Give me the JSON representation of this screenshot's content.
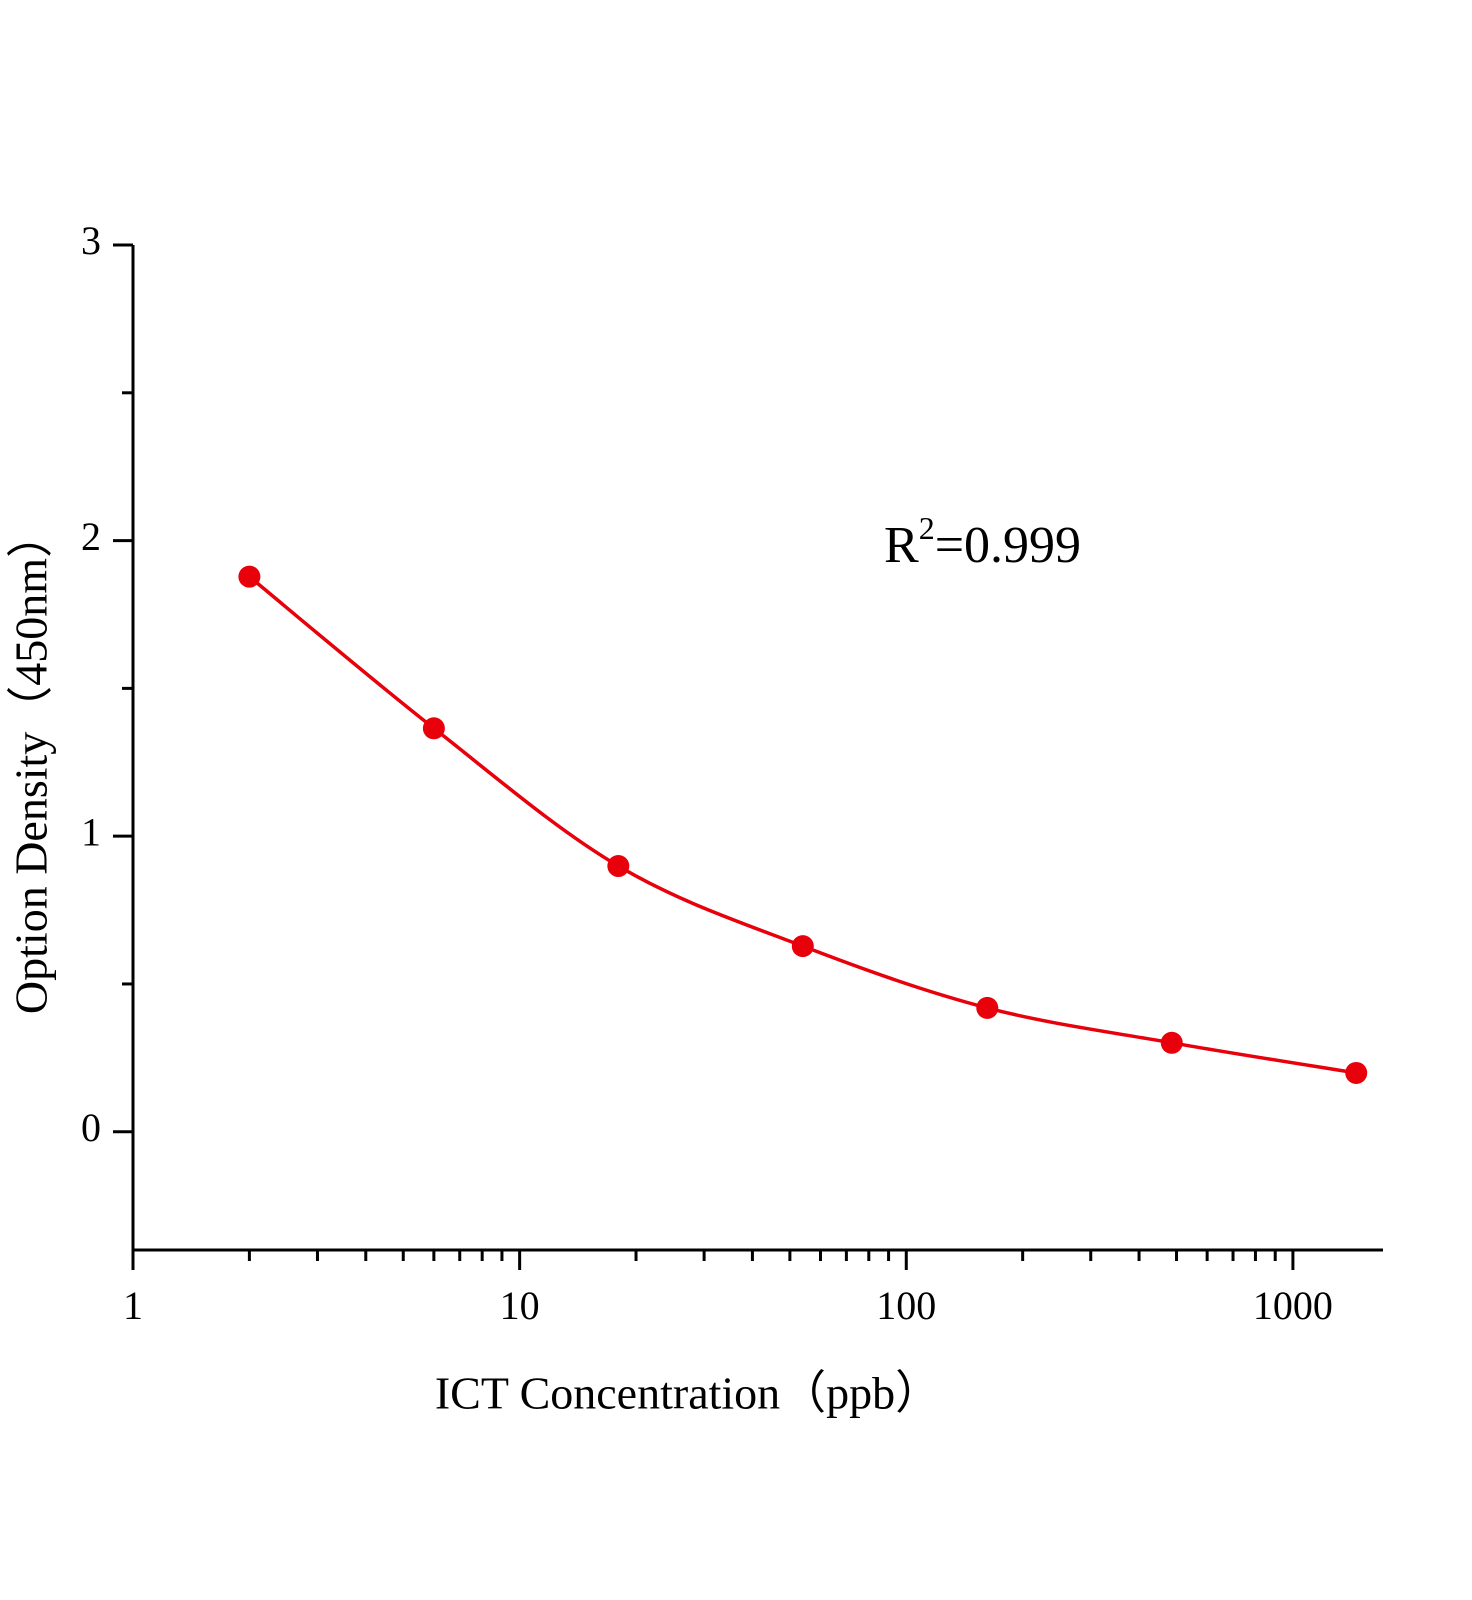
{
  "chart_data": {
    "type": "scatter",
    "xlabel": "ICT  Concentration（ppb）",
    "ylabel": "Option Density（450nm）",
    "annotation": {
      "base": "R",
      "superscript": "2",
      "text": "=0.999"
    },
    "x": [
      2,
      6,
      18,
      54,
      162,
      486,
      1458
    ],
    "series": [
      {
        "color": "#e8000b",
        "values": [
          1.878,
          1.365,
          0.899,
          0.628,
          0.419,
          0.301,
          0.199
        ]
      }
    ],
    "line": true,
    "smooth": true,
    "markers": true,
    "xscale": "log",
    "xlim": [
      1,
      1710
    ],
    "xticks": [
      1,
      10,
      100,
      1000
    ],
    "xminorticks": [
      2,
      3,
      4,
      5,
      6,
      7,
      8,
      9,
      20,
      30,
      40,
      50,
      60,
      70,
      80,
      90,
      200,
      300,
      400,
      500,
      600,
      700,
      800,
      900
    ],
    "ylim": [
      -0.4,
      3
    ],
    "yticks": [
      0,
      1,
      2,
      3
    ],
    "yminorticks": [
      0.5,
      1.5,
      2.5
    ],
    "grid": false
  }
}
